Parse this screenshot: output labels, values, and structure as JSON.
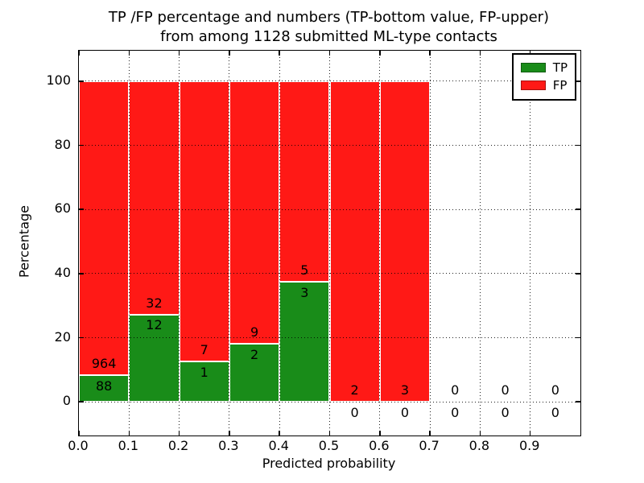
{
  "title": {
    "line1": "TP /FP percentage and numbers (TP-bottom value, FP-upper)",
    "line2": "from among 1128 submitted ML-type contacts"
  },
  "legend": {
    "items": [
      {
        "label": "TP",
        "color_key": "tp"
      },
      {
        "label": "FP",
        "color_key": "fp"
      }
    ]
  },
  "colors": {
    "tp": "#198c19",
    "fp": "#ff1916",
    "grid": "#000000",
    "frame": "#000000",
    "bar_edge": "#ffffff",
    "background": "#ffffff",
    "text": "#000000"
  },
  "chart_data": {
    "type": "bar",
    "stacked": true,
    "title": "TP /FP percentage and numbers (TP-bottom value, FP-upper)\nfrom among 1128 submitted ML-type contacts",
    "xlabel": "Predicted probability",
    "ylabel": "Percentage",
    "total_contacts": 1128,
    "xlim": [
      0,
      1
    ],
    "ylim": [
      -10.5,
      109.5
    ],
    "grid": true,
    "grid_style": "dotted",
    "legend_position": "upper right",
    "legend_entries": [
      "TP",
      "FP"
    ],
    "x_tick_values": [
      0.0,
      0.1,
      0.2,
      0.3,
      0.4,
      0.5,
      0.6,
      0.7,
      0.8,
      0.9
    ],
    "x_ticks": [
      "0.0",
      "0.1",
      "0.2",
      "0.3",
      "0.4",
      "0.5",
      "0.6",
      "0.7",
      "0.8",
      "0.9"
    ],
    "y_tick_values": [
      0,
      20,
      40,
      60,
      80,
      100
    ],
    "y_ticks": [
      "0",
      "20",
      "40",
      "60",
      "80",
      "100"
    ],
    "bins": [
      {
        "range": [
          0.0,
          0.1
        ],
        "tp": 88,
        "fp": 964,
        "tp_pct": 8.37,
        "fp_pct": 91.63
      },
      {
        "range": [
          0.1,
          0.2
        ],
        "tp": 12,
        "fp": 32,
        "tp_pct": 27.27,
        "fp_pct": 72.73
      },
      {
        "range": [
          0.2,
          0.3
        ],
        "tp": 1,
        "fp": 7,
        "tp_pct": 12.5,
        "fp_pct": 87.5
      },
      {
        "range": [
          0.3,
          0.4
        ],
        "tp": 2,
        "fp": 9,
        "tp_pct": 18.18,
        "fp_pct": 81.82
      },
      {
        "range": [
          0.4,
          0.5
        ],
        "tp": 3,
        "fp": 5,
        "tp_pct": 37.5,
        "fp_pct": 62.5
      },
      {
        "range": [
          0.5,
          0.6
        ],
        "tp": 0,
        "fp": 2,
        "tp_pct": 0,
        "fp_pct": 100
      },
      {
        "range": [
          0.6,
          0.7
        ],
        "tp": 0,
        "fp": 3,
        "tp_pct": 0,
        "fp_pct": 100
      },
      {
        "range": [
          0.7,
          0.8
        ],
        "tp": 0,
        "fp": 0,
        "tp_pct": 0,
        "fp_pct": 0
      },
      {
        "range": [
          0.8,
          0.9
        ],
        "tp": 0,
        "fp": 0,
        "tp_pct": 0,
        "fp_pct": 0
      },
      {
        "range": [
          0.9,
          1.0
        ],
        "tp": 0,
        "fp": 0,
        "tp_pct": 0,
        "fp_pct": 0
      }
    ]
  }
}
